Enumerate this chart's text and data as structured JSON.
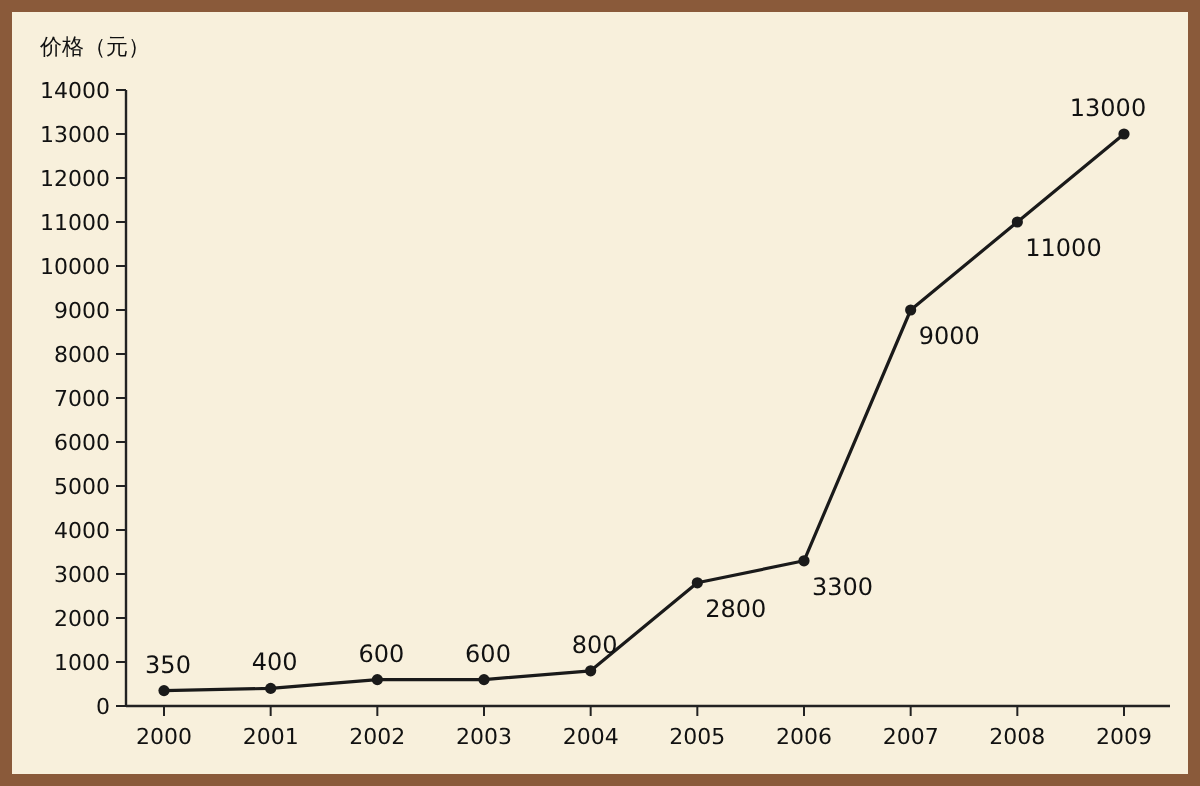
{
  "chart_data": {
    "type": "line",
    "ylabel": "价格（元）",
    "categories": [
      "2000",
      "2001",
      "2002",
      "2003",
      "2004",
      "2005",
      "2006",
      "2007",
      "2008",
      "2009"
    ],
    "values": [
      350,
      400,
      600,
      600,
      800,
      2800,
      3300,
      9000,
      11000,
      13000
    ],
    "color": "#1a1a1a",
    "marker": "circle",
    "line_style": "solid",
    "data_labels": true,
    "grid": false,
    "ylim": [
      0,
      14000
    ],
    "yticks": [
      0,
      1000,
      2000,
      3000,
      4000,
      5000,
      6000,
      7000,
      8000,
      9000,
      10000,
      11000,
      12000,
      13000,
      14000
    ]
  }
}
